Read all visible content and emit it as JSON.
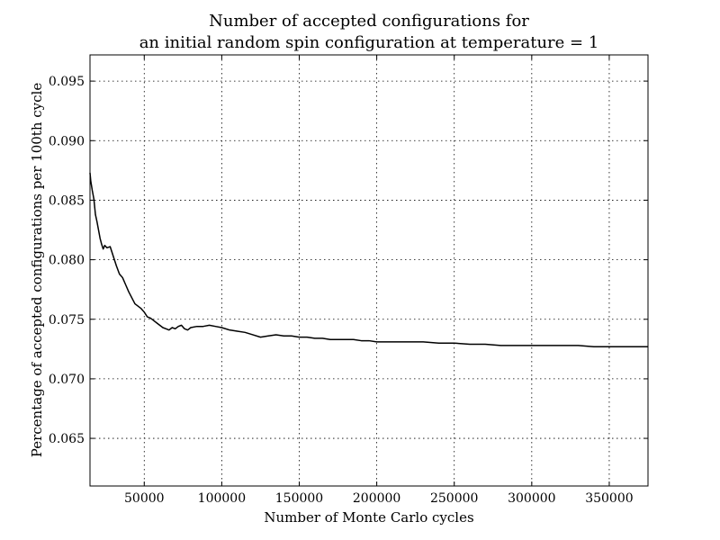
{
  "chart_data": {
    "type": "line",
    "title_lines": [
      "Number of accepted configurations for",
      "an initial random spin configuration at temperature = 1"
    ],
    "xlabel": "Number of Monte Carlo cycles",
    "ylabel": "Percentage of accepted configurations per 100th cycle",
    "xlim": [
      15000,
      375000
    ],
    "ylim": [
      0.061,
      0.0972
    ],
    "grid": true,
    "x_ticks": [
      50000,
      100000,
      150000,
      200000,
      250000,
      300000,
      350000
    ],
    "x_tick_labels": [
      "50000",
      "100000",
      "150000",
      "200000",
      "250000",
      "300000",
      "350000"
    ],
    "y_ticks": [
      0.065,
      0.07,
      0.075,
      0.08,
      0.085,
      0.09,
      0.095
    ],
    "y_tick_labels": [
      "0.065",
      "0.070",
      "0.075",
      "0.080",
      "0.085",
      "0.090",
      "0.095"
    ],
    "series": [
      {
        "color": "#000000",
        "x": [
          15000,
          15500,
          16500,
          17500,
          18500,
          19500,
          20500,
          21500,
          22500,
          23500,
          24500,
          26000,
          28000,
          30000,
          32000,
          34000,
          36000,
          38000,
          40000,
          42000,
          44000,
          46000,
          48000,
          50000,
          52000,
          54000,
          56000,
          58000,
          60000,
          62000,
          64000,
          66000,
          68000,
          70000,
          72000,
          74000,
          76000,
          78000,
          80000,
          84000,
          88000,
          92000,
          96000,
          100000,
          105000,
          110000,
          115000,
          120000,
          125000,
          130000,
          135000,
          140000,
          145000,
          150000,
          155000,
          160000,
          165000,
          170000,
          175000,
          180000,
          185000,
          190000,
          195000,
          200000,
          210000,
          220000,
          230000,
          240000,
          250000,
          260000,
          270000,
          280000,
          290000,
          300000,
          310000,
          320000,
          330000,
          340000,
          350000,
          360000,
          370000,
          375000
        ],
        "y": [
          0.0873,
          0.0866,
          0.0858,
          0.0851,
          0.0838,
          0.0832,
          0.0825,
          0.0818,
          0.0813,
          0.0809,
          0.0812,
          0.081,
          0.0811,
          0.0803,
          0.0795,
          0.0788,
          0.0785,
          0.0779,
          0.0773,
          0.0768,
          0.0763,
          0.0761,
          0.0759,
          0.0756,
          0.0752,
          0.0751,
          0.0749,
          0.0747,
          0.0745,
          0.0743,
          0.0742,
          0.0741,
          0.0743,
          0.0742,
          0.0744,
          0.0745,
          0.0742,
          0.0741,
          0.0743,
          0.0744,
          0.0744,
          0.0745,
          0.0744,
          0.0743,
          0.0741,
          0.074,
          0.0739,
          0.0737,
          0.0735,
          0.0736,
          0.0737,
          0.0736,
          0.0736,
          0.0735,
          0.0735,
          0.0734,
          0.0734,
          0.0733,
          0.0733,
          0.0733,
          0.0733,
          0.0732,
          0.0732,
          0.0731,
          0.0731,
          0.0731,
          0.0731,
          0.073,
          0.073,
          0.0729,
          0.0729,
          0.0728,
          0.0728,
          0.0728,
          0.0728,
          0.0728,
          0.0728,
          0.0727,
          0.0727,
          0.0727,
          0.0727,
          0.0727
        ]
      }
    ]
  }
}
